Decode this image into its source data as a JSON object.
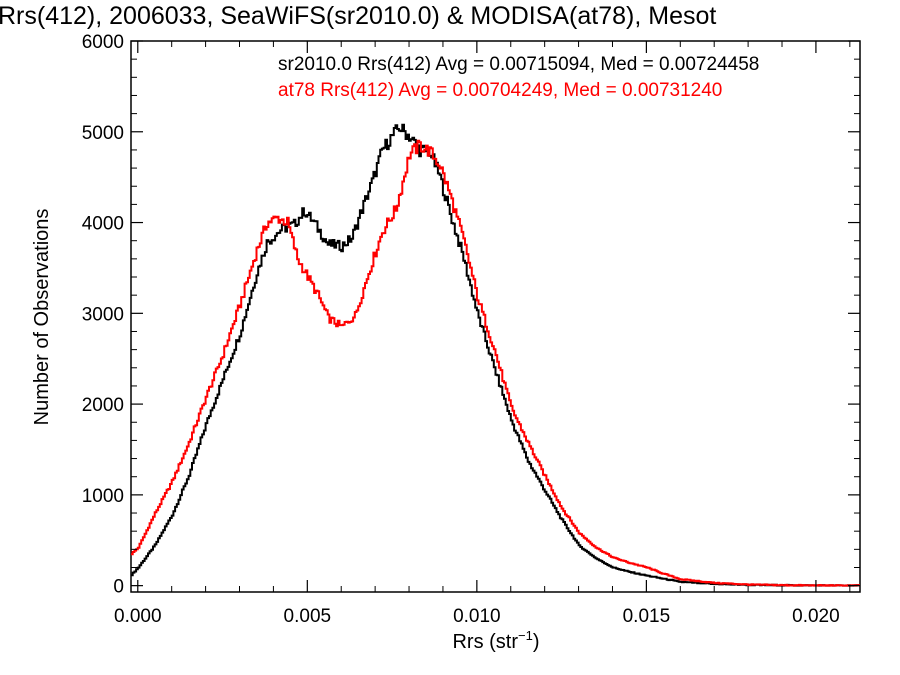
{
  "chart_data": {
    "type": "line",
    "step": true,
    "title": "Rrs(412), 2006033, SeaWiFS(sr2010.0) & MODISA(at78), Mesot",
    "xlabel": "Rrs (str",
    "xlabel_sup": "−1",
    "xlabel_end": ")",
    "ylabel": "Number of Observations",
    "xlim": [
      -0.0002,
      0.0213
    ],
    "ylim": [
      -70,
      6000
    ],
    "xticks": [
      0.0,
      0.005,
      0.01,
      0.015,
      0.02
    ],
    "xtick_labels": [
      "0.000",
      "0.005",
      "0.010",
      "0.015",
      "0.020"
    ],
    "yticks": [
      0,
      1000,
      2000,
      3000,
      4000,
      5000,
      6000
    ],
    "ytick_labels": [
      "0",
      "1000",
      "2000",
      "3000",
      "4000",
      "5000",
      "6000"
    ],
    "grid": false,
    "legend_placement": "top-right",
    "series": [
      {
        "name": "sr2010.0",
        "color": "#000000",
        "annotation": "sr2010.0 Rrs(412) Avg = 0.00715094, Med = 0.00724458",
        "x": [
          -0.0002,
          0.0,
          0.0005,
          0.001,
          0.0015,
          0.002,
          0.0025,
          0.003,
          0.0035,
          0.0038,
          0.0042,
          0.0046,
          0.0049,
          0.0052,
          0.0056,
          0.006,
          0.0063,
          0.0066,
          0.0069,
          0.0072,
          0.0075,
          0.0077,
          0.008,
          0.0083,
          0.0086,
          0.0089,
          0.0092,
          0.0096,
          0.01,
          0.0105,
          0.011,
          0.0115,
          0.012,
          0.0125,
          0.013,
          0.0135,
          0.014,
          0.0145,
          0.015,
          0.0155,
          0.016,
          0.017,
          0.018,
          0.019,
          0.02,
          0.0213
        ],
        "y": [
          120,
          200,
          450,
          780,
          1220,
          1780,
          2280,
          2780,
          3450,
          3780,
          3920,
          3980,
          4130,
          3990,
          3760,
          3740,
          3830,
          4150,
          4450,
          4800,
          4960,
          5050,
          4950,
          4800,
          4780,
          4500,
          4100,
          3600,
          3000,
          2400,
          1820,
          1370,
          1040,
          720,
          440,
          300,
          200,
          150,
          110,
          75,
          40,
          18,
          8,
          4,
          2,
          1
        ]
      },
      {
        "name": "at78",
        "color": "#ff0000",
        "annotation": "at78 Rrs(412) Avg = 0.00704249, Med = 0.00731240",
        "x": [
          -0.0002,
          0.0,
          0.0005,
          0.001,
          0.0015,
          0.002,
          0.0025,
          0.003,
          0.0035,
          0.0038,
          0.0041,
          0.0044,
          0.0047,
          0.005,
          0.0053,
          0.0056,
          0.006,
          0.0064,
          0.0068,
          0.0072,
          0.0076,
          0.008,
          0.0083,
          0.0086,
          0.0089,
          0.0092,
          0.0096,
          0.01,
          0.0105,
          0.011,
          0.0115,
          0.012,
          0.0125,
          0.013,
          0.0135,
          0.014,
          0.0145,
          0.015,
          0.0155,
          0.016,
          0.017,
          0.018,
          0.019,
          0.02,
          0.0213
        ],
        "y": [
          350,
          420,
          800,
          1150,
          1580,
          2080,
          2550,
          3100,
          3700,
          4000,
          4050,
          4000,
          3600,
          3400,
          3200,
          2950,
          2850,
          2980,
          3450,
          3900,
          4150,
          4750,
          4850,
          4780,
          4630,
          4300,
          3800,
          3180,
          2600,
          1960,
          1570,
          1200,
          850,
          580,
          420,
          310,
          250,
          200,
          130,
          70,
          30,
          12,
          5,
          2,
          1
        ]
      }
    ]
  }
}
